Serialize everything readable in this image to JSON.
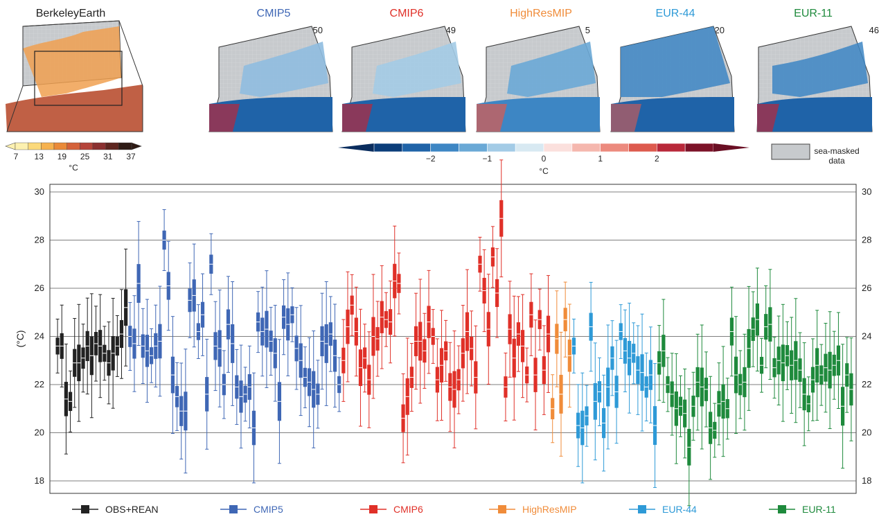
{
  "panels": [
    {
      "title": "BerkeleyEarth",
      "color": "#222222",
      "count": ""
    },
    {
      "title": "CMIP5",
      "color": "#3f67b5",
      "count": "50"
    },
    {
      "title": "CMIP6",
      "color": "#e03028",
      "count": "49"
    },
    {
      "title": "HighResMIP",
      "color": "#f08c3a",
      "count": "5"
    },
    {
      "title": "EUR-44",
      "color": "#2e9ad7",
      "count": "20"
    },
    {
      "title": "EUR-11",
      "color": "#1e8a3c",
      "count": "46"
    }
  ],
  "abs_colorbar": {
    "ticks": [
      "7",
      "13",
      "19",
      "25",
      "31",
      "37"
    ],
    "unit": "°C",
    "colors": [
      "#fdf1b0",
      "#fbd97a",
      "#f6b24f",
      "#ea8a39",
      "#d4623a",
      "#b5443a",
      "#8b3030",
      "#5e2620",
      "#2e1a14"
    ]
  },
  "bias_colorbar": {
    "ticks": [
      "−2",
      "−1",
      "0",
      "1",
      "2"
    ],
    "unit": "°C",
    "colors": [
      "#0b3d7a",
      "#1f63a8",
      "#3d86c4",
      "#6aa9d6",
      "#a3cbe6",
      "#d8e9f2",
      "#fbe0dd",
      "#f5b7ae",
      "#ec8a7e",
      "#dd5a4e",
      "#b8283a",
      "#7c1228"
    ]
  },
  "sea_mask_legend": {
    "label_line1": "sea-masked",
    "label_line2": "data",
    "color": "#c7cacd"
  },
  "chart_data": {
    "type": "boxplot",
    "ylabel": "(°C)",
    "ylim": [
      18,
      30
    ],
    "yticks": [
      18,
      20,
      22,
      24,
      26,
      28,
      30
    ],
    "grid": true,
    "legend_position": "bottom",
    "series": [
      {
        "name": "OBS+REAN",
        "color": "#222222",
        "medians": [
          23.6,
          23.6,
          21.4,
          21.3,
          22.9,
          22.9,
          23.1,
          23.6,
          23.2,
          23.7,
          23.6,
          23.3,
          22.9,
          23.3,
          23.6,
          24.1,
          25.2
        ]
      },
      {
        "name": "CMIP5",
        "color": "#3f67b5",
        "medians": [
          24.0,
          23.7,
          26.2,
          23.6,
          23.4,
          23.2,
          23.6,
          23.8,
          28.0,
          26.1,
          22.4,
          21.5,
          20.9,
          20.9,
          25.5,
          25.7,
          24.2,
          24.9,
          21.6,
          27.0,
          23.6,
          23.5,
          22.0,
          24.5,
          23.7,
          21.9,
          21.5,
          21.6,
          21.9,
          20.2,
          24.6,
          24.2,
          24.3,
          23.8,
          23.3,
          21.3,
          24.8,
          24.5,
          24.9,
          23.5,
          23.0,
          22.3,
          22.1,
          21.8,
          21.6,
          23.8,
          23.7,
          24.1,
          23.2,
          22.0
        ]
      },
      {
        "name": "CMIP6",
        "color": "#e03028",
        "medians": [
          23.0,
          24.4,
          25.3,
          24.2,
          22.7,
          23.1,
          22.2,
          24.0,
          23.9,
          24.8,
          24.7,
          24.6,
          26.3,
          26.2,
          20.6,
          21.5,
          22.3,
          23.8,
          23.8,
          23.4,
          24.6,
          24.0,
          22.2,
          22.8,
          23.4,
          21.9,
          21.8,
          22.2,
          23.3,
          24.2,
          23.5,
          22.3,
          27.0,
          25.9,
          24.3,
          27.3,
          25.8,
          28.9,
          21.9,
          24.3,
          23.1,
          24.1,
          23.6,
          22.4,
          24.9,
          22.4,
          24.7,
          22.6,
          24.1
        ]
      },
      {
        "name": "HighResMIP",
        "color": "#f08c3a",
        "medians": [
          21.0,
          23.9,
          21.6,
          24.7,
          23.2
        ]
      },
      {
        "name": "EUR-44",
        "color": "#2e9ad7",
        "medians": [
          23.6,
          20.3,
          20.2,
          20.7,
          24.4,
          21.3,
          21.7,
          20.4,
          21.9,
          23.1,
          21.7,
          24.2,
          23.4,
          23.1,
          23.3,
          22.6,
          22.5,
          21.9,
          22.4,
          20.3
        ]
      },
      {
        "name": "EUR-11",
        "color": "#1e8a3c",
        "medians": [
          22.9,
          23.4,
          22.0,
          21.6,
          21.0,
          21.1,
          20.8,
          19.4,
          21.1,
          22.1,
          21.9,
          21.8,
          20.2,
          20.1,
          21.2,
          21.3,
          21.0,
          24.2,
          22.4,
          22.0,
          22.1,
          23.5,
          24.3,
          24.7,
          22.8,
          24.4,
          24.5,
          22.7,
          23.0,
          22.9,
          23.2,
          22.8,
          23.0,
          22.6,
          21.6,
          21.2,
          22.2,
          22.8,
          22.4,
          22.7,
          22.6,
          22.8,
          23.0,
          21.1,
          22.4,
          21.8
        ]
      }
    ]
  }
}
